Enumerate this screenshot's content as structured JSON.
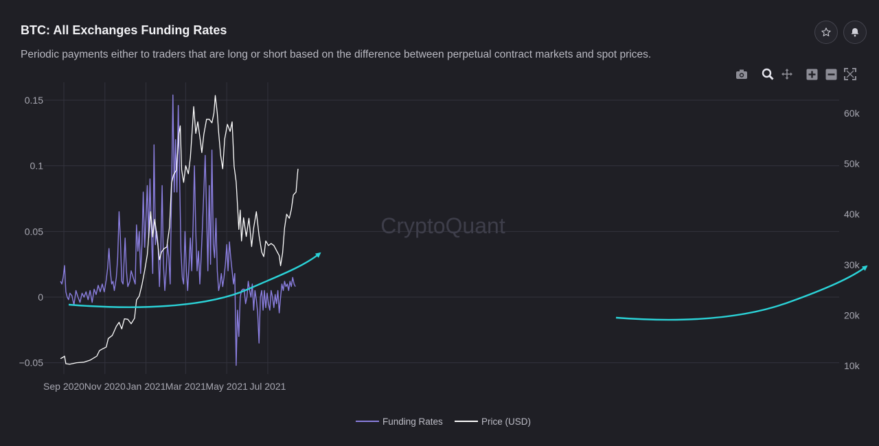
{
  "header": {
    "title": "BTC: All Exchanges Funding Rates",
    "subtitle": "Periodic payments either to traders that are long or short based on the difference between perpetual contract markets and spot prices."
  },
  "actions": {
    "star_icon": "star-icon",
    "bell_icon": "bell-icon"
  },
  "toolbar": {
    "items": [
      "camera-icon",
      "zoom-icon",
      "pan-icon",
      "zoom-in-icon",
      "zoom-out-icon",
      "autoscale-icon"
    ]
  },
  "watermark": "CryptoQuant",
  "colors": {
    "funding": "#8b7fe0",
    "price": "#ffffff",
    "annotation": "#2bd3d8",
    "background": "#1f1f25",
    "grid": "#33333d"
  },
  "chart_data": {
    "type": "line",
    "grid": true,
    "legend_position": "bottom-center",
    "x_ticks": [
      "Sep 2020",
      "Nov 2020",
      "Jan 2021",
      "Mar 2021",
      "May 2021",
      "Jul 2021"
    ],
    "x_range": [
      "2020-08-27",
      "2021-08-15"
    ],
    "y_left": {
      "ticks": [
        -0.05,
        0,
        0.05,
        0.1,
        0.15
      ],
      "tick_labels": [
        "−0.05",
        "0",
        "0.05",
        "0.1",
        "0.15"
      ],
      "range": [
        -0.055,
        0.155
      ]
    },
    "y_right": {
      "ticks": [
        10000,
        20000,
        30000,
        40000,
        50000,
        60000
      ],
      "tick_labels": [
        "10k",
        "20k",
        "30k",
        "40k",
        "50k",
        "60k"
      ],
      "range": [
        9000,
        64500
      ]
    },
    "series": [
      {
        "name": "Funding Rates",
        "axis": "left",
        "points": [
          [
            "2020-08-27",
            0.012
          ],
          [
            "2020-08-29",
            0.01
          ],
          [
            "2020-08-31",
            0.015
          ],
          [
            "2020-09-02",
            0.024
          ],
          [
            "2020-09-04",
            0.004
          ],
          [
            "2020-09-06",
            0.0
          ],
          [
            "2020-09-08",
            -0.002
          ],
          [
            "2020-09-10",
            0.003
          ],
          [
            "2020-09-13",
            0.001
          ],
          [
            "2020-09-16",
            -0.006
          ],
          [
            "2020-09-19",
            0.005
          ],
          [
            "2020-09-22",
            0.0
          ],
          [
            "2020-09-25",
            -0.004
          ],
          [
            "2020-09-28",
            0.003
          ],
          [
            "2020-10-01",
            0.0
          ],
          [
            "2020-10-04",
            0.004
          ],
          [
            "2020-10-07",
            -0.002
          ],
          [
            "2020-10-10",
            0.005
          ],
          [
            "2020-10-13",
            -0.004
          ],
          [
            "2020-10-16",
            0.006
          ],
          [
            "2020-10-19",
            0.002
          ],
          [
            "2020-10-22",
            0.009
          ],
          [
            "2020-10-25",
            0.004
          ],
          [
            "2020-10-28",
            0.01
          ],
          [
            "2020-10-31",
            0.004
          ],
          [
            "2020-11-03",
            0.013
          ],
          [
            "2020-11-05",
            0.022
          ],
          [
            "2020-11-07",
            0.037
          ],
          [
            "2020-11-09",
            0.02
          ],
          [
            "2020-11-11",
            0.01
          ],
          [
            "2020-11-13",
            0.012
          ],
          [
            "2020-11-15",
            0.005
          ],
          [
            "2020-11-18",
            0.015
          ],
          [
            "2020-11-20",
            0.03
          ],
          [
            "2020-11-22",
            0.065
          ],
          [
            "2020-11-24",
            0.045
          ],
          [
            "2020-11-26",
            0.012
          ],
          [
            "2020-11-28",
            0.01
          ],
          [
            "2020-12-01",
            0.045
          ],
          [
            "2020-12-03",
            0.02
          ],
          [
            "2020-12-05",
            0.008
          ],
          [
            "2020-12-08",
            0.012
          ],
          [
            "2020-12-10",
            0.02
          ],
          [
            "2020-12-13",
            0.015
          ],
          [
            "2020-12-16",
            0.01
          ],
          [
            "2020-12-18",
            0.055
          ],
          [
            "2020-12-20",
            0.035
          ],
          [
            "2020-12-22",
            0.05
          ],
          [
            "2020-12-24",
            0.018
          ],
          [
            "2020-12-26",
            0.04
          ],
          [
            "2020-12-28",
            0.08
          ],
          [
            "2020-12-30",
            0.038
          ],
          [
            "2021-01-01",
            0.06
          ],
          [
            "2021-01-03",
            0.085
          ],
          [
            "2021-01-05",
            0.045
          ],
          [
            "2021-01-07",
            0.09
          ],
          [
            "2021-01-09",
            0.05
          ],
          [
            "2021-01-11",
            0.018
          ],
          [
            "2021-01-13",
            0.116
          ],
          [
            "2021-01-15",
            0.04
          ],
          [
            "2021-01-17",
            0.05
          ],
          [
            "2021-01-19",
            0.04
          ],
          [
            "2021-01-21",
            0.008
          ],
          [
            "2021-01-23",
            0.035
          ],
          [
            "2021-01-25",
            0.085
          ],
          [
            "2021-01-27",
            0.025
          ],
          [
            "2021-01-29",
            0.005
          ],
          [
            "2021-01-31",
            0.02
          ],
          [
            "2021-02-02",
            0.04
          ],
          [
            "2021-02-04",
            0.03
          ],
          [
            "2021-02-06",
            0.01
          ],
          [
            "2021-02-08",
            0.08
          ],
          [
            "2021-02-10",
            0.154
          ],
          [
            "2021-02-12",
            0.08
          ],
          [
            "2021-02-14",
            0.12
          ],
          [
            "2021-02-16",
            0.08
          ],
          [
            "2021-02-18",
            0.146
          ],
          [
            "2021-02-20",
            0.09
          ],
          [
            "2021-02-22",
            0.035
          ],
          [
            "2021-02-24",
            0.015
          ],
          [
            "2021-02-26",
            0.01
          ],
          [
            "2021-02-28",
            0.05
          ],
          [
            "2021-03-02",
            0.02
          ],
          [
            "2021-03-04",
            0.005
          ],
          [
            "2021-03-06",
            0.025
          ],
          [
            "2021-03-08",
            0.045
          ],
          [
            "2021-03-10",
            0.02
          ],
          [
            "2021-03-12",
            0.055
          ],
          [
            "2021-03-14",
            0.1
          ],
          [
            "2021-03-16",
            0.05
          ],
          [
            "2021-03-18",
            0.02
          ],
          [
            "2021-03-20",
            0.035
          ],
          [
            "2021-03-22",
            0.01
          ],
          [
            "2021-03-24",
            0.03
          ],
          [
            "2021-03-26",
            0.055
          ],
          [
            "2021-03-28",
            0.08
          ],
          [
            "2021-03-30",
            0.108
          ],
          [
            "2021-04-01",
            0.065
          ],
          [
            "2021-04-03",
            0.02
          ],
          [
            "2021-04-05",
            0.085
          ],
          [
            "2021-04-07",
            0.025
          ],
          [
            "2021-04-09",
            0.112
          ],
          [
            "2021-04-11",
            0.04
          ],
          [
            "2021-04-13",
            0.03
          ],
          [
            "2021-04-15",
            0.06
          ],
          [
            "2021-04-17",
            0.02
          ],
          [
            "2021-04-19",
            0.005
          ],
          [
            "2021-04-21",
            0.01
          ],
          [
            "2021-04-23",
            0.018
          ],
          [
            "2021-04-25",
            0.008
          ],
          [
            "2021-04-27",
            0.015
          ],
          [
            "2021-04-29",
            0.025
          ],
          [
            "2021-05-01",
            0.04
          ],
          [
            "2021-05-03",
            0.02
          ],
          [
            "2021-05-05",
            0.042
          ],
          [
            "2021-05-07",
            0.03
          ],
          [
            "2021-05-09",
            0.02
          ],
          [
            "2021-05-11",
            0.01
          ],
          [
            "2021-05-13",
            0.018
          ],
          [
            "2021-05-15",
            -0.052
          ],
          [
            "2021-05-17",
            -0.01
          ],
          [
            "2021-05-19",
            -0.03
          ],
          [
            "2021-05-21",
            0.0
          ],
          [
            "2021-05-23",
            0.005
          ],
          [
            "2021-05-25",
            0.006
          ],
          [
            "2021-05-27",
            0.006
          ],
          [
            "2021-05-29",
            -0.005
          ],
          [
            "2021-05-31",
            0.0
          ],
          [
            "2021-06-02",
            0.012
          ],
          [
            "2021-06-04",
            0.005
          ],
          [
            "2021-06-06",
            0.0
          ],
          [
            "2021-06-08",
            0.01
          ],
          [
            "2021-06-10",
            -0.01
          ],
          [
            "2021-06-12",
            0.005
          ],
          [
            "2021-06-14",
            -0.002
          ],
          [
            "2021-06-16",
            -0.012
          ],
          [
            "2021-06-18",
            -0.035
          ],
          [
            "2021-06-20",
            0.0
          ],
          [
            "2021-06-22",
            0.005
          ],
          [
            "2021-06-24",
            -0.01
          ],
          [
            "2021-06-26",
            0.005
          ],
          [
            "2021-06-28",
            -0.008
          ],
          [
            "2021-06-30",
            0.003
          ],
          [
            "2021-07-02",
            -0.005
          ],
          [
            "2021-07-04",
            -0.01
          ],
          [
            "2021-07-06",
            0.005
          ],
          [
            "2021-07-08",
            0.0
          ],
          [
            "2021-07-10",
            -0.008
          ],
          [
            "2021-07-12",
            0.002
          ],
          [
            "2021-07-14",
            -0.005
          ],
          [
            "2021-07-16",
            0.005
          ],
          [
            "2021-07-18",
            -0.012
          ],
          [
            "2021-07-20",
            0.0
          ],
          [
            "2021-07-22",
            0.01
          ],
          [
            "2021-07-24",
            0.005
          ],
          [
            "2021-07-26",
            0.012
          ],
          [
            "2021-07-28",
            0.008
          ],
          [
            "2021-07-30",
            0.01
          ],
          [
            "2021-08-01",
            0.005
          ],
          [
            "2021-08-03",
            0.012
          ],
          [
            "2021-08-05",
            0.008
          ],
          [
            "2021-08-07",
            0.015
          ],
          [
            "2021-08-09",
            0.01
          ],
          [
            "2021-08-11",
            0.008
          ]
        ]
      },
      {
        "name": "Price (USD)",
        "axis": "right",
        "points": [
          [
            "2020-08-27",
            11400
          ],
          [
            "2020-08-31",
            11700
          ],
          [
            "2020-09-02",
            11900
          ],
          [
            "2020-09-04",
            10400
          ],
          [
            "2020-09-10",
            10300
          ],
          [
            "2020-09-20",
            10600
          ],
          [
            "2020-10-01",
            10700
          ],
          [
            "2020-10-10",
            11100
          ],
          [
            "2020-10-20",
            11900
          ],
          [
            "2020-10-24",
            13000
          ],
          [
            "2020-10-28",
            13300
          ],
          [
            "2020-11-03",
            13700
          ],
          [
            "2020-11-06",
            15400
          ],
          [
            "2020-11-12",
            16000
          ],
          [
            "2020-11-18",
            17800
          ],
          [
            "2020-11-22",
            18600
          ],
          [
            "2020-11-26",
            17300
          ],
          [
            "2020-11-30",
            19300
          ],
          [
            "2020-12-05",
            19200
          ],
          [
            "2020-12-10",
            18300
          ],
          [
            "2020-12-15",
            19400
          ],
          [
            "2020-12-18",
            23000
          ],
          [
            "2020-12-22",
            23800
          ],
          [
            "2020-12-26",
            26000
          ],
          [
            "2020-12-30",
            28800
          ],
          [
            "2021-01-03",
            32000
          ],
          [
            "2021-01-08",
            40500
          ],
          [
            "2021-01-11",
            35500
          ],
          [
            "2021-01-14",
            39000
          ],
          [
            "2021-01-17",
            36000
          ],
          [
            "2021-01-21",
            31000
          ],
          [
            "2021-01-24",
            32500
          ],
          [
            "2021-01-28",
            33200
          ],
          [
            "2021-02-01",
            33500
          ],
          [
            "2021-02-05",
            37500
          ],
          [
            "2021-02-08",
            46200
          ],
          [
            "2021-02-11",
            47800
          ],
          [
            "2021-02-15",
            48700
          ],
          [
            "2021-02-17",
            52100
          ],
          [
            "2021-02-19",
            56000
          ],
          [
            "2021-02-21",
            57500
          ],
          [
            "2021-02-23",
            48800
          ],
          [
            "2021-02-26",
            46300
          ],
          [
            "2021-03-01",
            49600
          ],
          [
            "2021-03-05",
            48000
          ],
          [
            "2021-03-08",
            51200
          ],
          [
            "2021-03-11",
            57300
          ],
          [
            "2021-03-13",
            61300
          ],
          [
            "2021-03-16",
            56000
          ],
          [
            "2021-03-19",
            58300
          ],
          [
            "2021-03-23",
            54400
          ],
          [
            "2021-03-25",
            52200
          ],
          [
            "2021-03-28",
            55800
          ],
          [
            "2021-04-01",
            58800
          ],
          [
            "2021-04-05",
            58800
          ],
          [
            "2021-04-09",
            58100
          ],
          [
            "2021-04-12",
            60000
          ],
          [
            "2021-04-14",
            63500
          ],
          [
            "2021-04-17",
            60000
          ],
          [
            "2021-04-19",
            56200
          ],
          [
            "2021-04-22",
            51700
          ],
          [
            "2021-04-25",
            49000
          ],
          [
            "2021-04-28",
            54900
          ],
          [
            "2021-05-02",
            57800
          ],
          [
            "2021-05-06",
            56400
          ],
          [
            "2021-05-09",
            58300
          ],
          [
            "2021-05-12",
            49500
          ],
          [
            "2021-05-15",
            46400
          ],
          [
            "2021-05-19",
            37000
          ],
          [
            "2021-05-21",
            40800
          ],
          [
            "2021-05-23",
            34700
          ],
          [
            "2021-05-26",
            39300
          ],
          [
            "2021-05-30",
            35600
          ],
          [
            "2021-06-03",
            39200
          ],
          [
            "2021-06-07",
            33600
          ],
          [
            "2021-06-10",
            37300
          ],
          [
            "2021-06-14",
            40500
          ],
          [
            "2021-06-18",
            35800
          ],
          [
            "2021-06-22",
            32500
          ],
          [
            "2021-06-25",
            31600
          ],
          [
            "2021-06-28",
            34700
          ],
          [
            "2021-07-02",
            33800
          ],
          [
            "2021-07-06",
            34200
          ],
          [
            "2021-07-10",
            33800
          ],
          [
            "2021-07-14",
            32800
          ],
          [
            "2021-07-18",
            31800
          ],
          [
            "2021-07-20",
            29800
          ],
          [
            "2021-07-23",
            32300
          ],
          [
            "2021-07-26",
            37300
          ],
          [
            "2021-07-29",
            40000
          ],
          [
            "2021-08-02",
            39200
          ],
          [
            "2021-08-05",
            40900
          ],
          [
            "2021-08-08",
            43800
          ],
          [
            "2021-08-12",
            44400
          ],
          [
            "2021-08-14",
            47800
          ],
          [
            "2021-08-15",
            49000
          ]
        ]
      }
    ]
  }
}
